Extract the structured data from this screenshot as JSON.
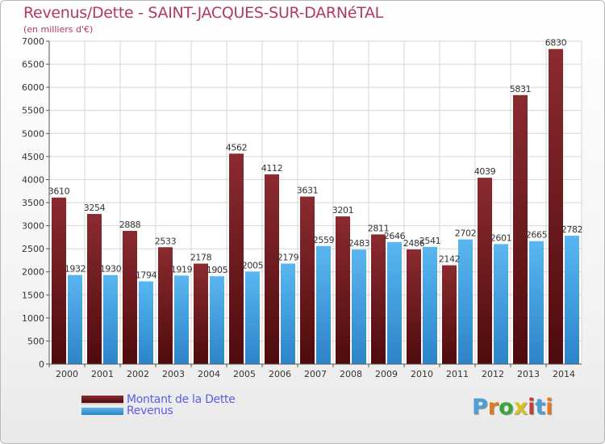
{
  "title": "Revenus/Dette - SAINT-JACQUES-SUR-DARNéTAL",
  "subtitle": "(en milliers d'€)",
  "logo": {
    "text": "Proxiti",
    "colors": [
      "#4a9fd8",
      "#e2791f",
      "#3aa63a",
      "#d9c21b",
      "#c43c3c",
      "#4a9fd8",
      "#e2791f"
    ]
  },
  "colors": {
    "dette": "#7a1f24",
    "revenus": "#4aa6e8",
    "title": "#b23a5b",
    "legend_text": "#5b5ee8"
  },
  "chart_data": {
    "type": "bar",
    "title": "Revenus/Dette - SAINT-JACQUES-SUR-DARNéTAL",
    "subtitle": "(en milliers d'€)",
    "categories": [
      "2000",
      "2001",
      "2002",
      "2003",
      "2004",
      "2005",
      "2006",
      "2007",
      "2008",
      "2009",
      "2010",
      "2011",
      "2012",
      "2013",
      "2014"
    ],
    "series": [
      {
        "name": "Montant de la Dette",
        "values": [
          3610,
          3254,
          2888,
          2533,
          2178,
          4562,
          4112,
          3631,
          3201,
          2811,
          2486,
          2142,
          4039,
          5831,
          6830
        ]
      },
      {
        "name": "Revenus",
        "values": [
          1932,
          1930,
          1794,
          1919,
          1905,
          2005,
          2179,
          2559,
          2483,
          2646,
          2541,
          2702,
          2601,
          2665,
          2782
        ]
      }
    ],
    "yticks": [
      "0",
      "500",
      "1000",
      "1500",
      "2000",
      "2500",
      "3000",
      "3500",
      "4000",
      "4500",
      "5000",
      "5500",
      "6000",
      "6500",
      "7000"
    ],
    "ylim": [
      0,
      7000
    ],
    "grid": true,
    "legend_position": "bottom-left"
  }
}
